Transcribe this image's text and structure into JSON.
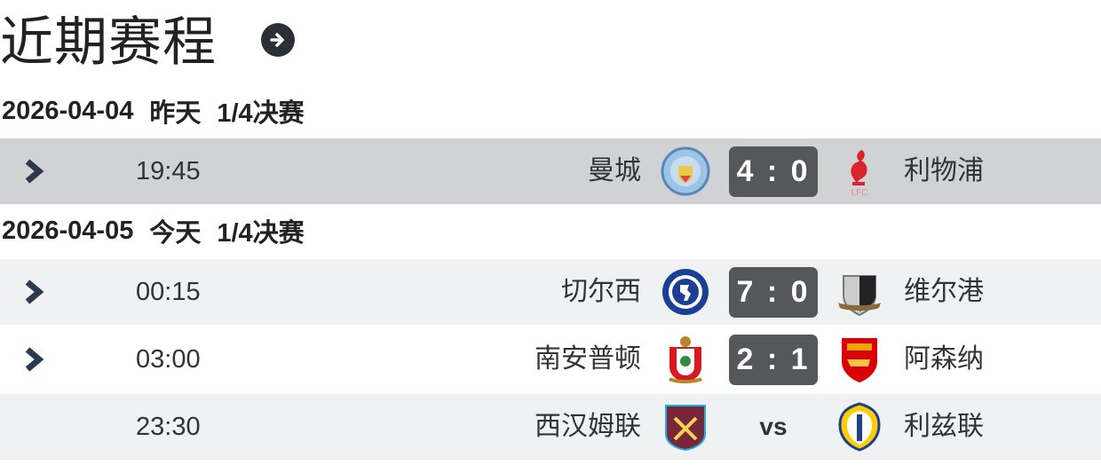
{
  "title": "近期赛程",
  "title_icon": "arrow-right-circle-icon",
  "groups": [
    {
      "date": "2026-04-04",
      "day": "昨天",
      "round": "1/4决赛",
      "matches": [
        {
          "time": "19:45",
          "home": "曼城",
          "away": "利物浦",
          "score": "4 : 0",
          "has_detail": true,
          "highlighted": true
        }
      ]
    },
    {
      "date": "2026-04-05",
      "day": "今天",
      "round": "1/4决赛",
      "matches": [
        {
          "time": "00:15",
          "home": "切尔西",
          "away": "维尔港",
          "score": "7 : 0",
          "has_detail": true
        },
        {
          "time": "03:00",
          "home": "南安普顿",
          "away": "阿森纳",
          "score": "2 : 1",
          "has_detail": true
        },
        {
          "time": "23:30",
          "home": "西汉姆联",
          "away": "利兹联",
          "score": "vs",
          "has_detail": false
        }
      ]
    }
  ],
  "colors": {
    "highlight_row": "#d1d2d4",
    "alt_row": "#f0f1f3",
    "score_bg": "#55575a",
    "chevron": "#2b3a4e"
  }
}
